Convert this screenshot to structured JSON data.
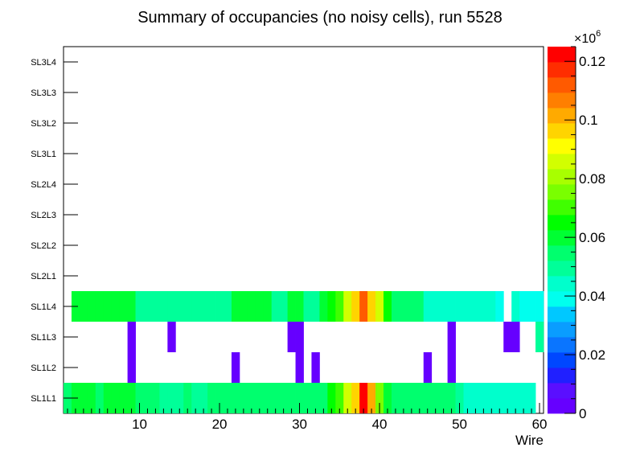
{
  "chart_data": {
    "type": "heatmap",
    "title": "Summary of occupancies (no noisy cells), run 5528",
    "xlabel": "Wire",
    "ylabel": "",
    "xlim": [
      0.5,
      60.5
    ],
    "x_ticks": [
      10,
      20,
      30,
      40,
      50,
      60
    ],
    "x_tick_labels": [
      "10",
      "20",
      "30",
      "40",
      "50",
      "60"
    ],
    "y_categories": [
      "SL1L1",
      "SL1L2",
      "SL1L3",
      "SL1L4",
      "SL2L1",
      "SL2L2",
      "SL2L3",
      "SL2L4",
      "SL3L1",
      "SL3L2",
      "SL3L3",
      "SL3L4"
    ],
    "z_range": [
      0,
      125000
    ],
    "z_exponent_label": "×10",
    "z_exponent_power": "6",
    "z_tick_values": [
      0,
      20000,
      40000,
      60000,
      80000,
      100000,
      120000
    ],
    "z_tick_labels": [
      "0",
      "0.02",
      "0.04",
      "0.06",
      "0.08",
      "0.1",
      "0.12"
    ],
    "palette": [
      "#6600ff",
      "#5a0fff",
      "#2020ff",
      "#0047ff",
      "#0a75ff",
      "#0a9dff",
      "#00c8ff",
      "#00ffee",
      "#00ffcc",
      "#00ff99",
      "#00ff6e",
      "#00ff33",
      "#00ff00",
      "#40ff00",
      "#7aff00",
      "#a8ff00",
      "#d2ff00",
      "#ffff00",
      "#ffd400",
      "#ffaa00",
      "#ff7f00",
      "#ff5a00",
      "#ff2d00",
      "#ff0000"
    ],
    "rows": {
      "SL1L1": [
        56000,
        60000,
        62000,
        58000,
        56000,
        60000,
        62000,
        58000,
        60000,
        56000,
        56000,
        56000,
        50000,
        50000,
        50000,
        54000,
        50000,
        50000,
        54000,
        56000,
        56000,
        56000,
        56000,
        56000,
        56000,
        56000,
        56000,
        56000,
        56000,
        56000,
        56000,
        56000,
        56000,
        65000,
        72000,
        85000,
        95000,
        120000,
        102000,
        75000,
        62000,
        54000,
        54000,
        54000,
        54000,
        54000,
        54000,
        54000,
        54000,
        50000,
        45000,
        45000,
        45000,
        45000,
        45000,
        45000,
        45000,
        45000,
        45000,
        null
      ],
      "SL1L2": [
        null,
        null,
        null,
        null,
        null,
        null,
        null,
        null,
        5000,
        null,
        null,
        null,
        null,
        null,
        null,
        null,
        null,
        null,
        null,
        null,
        null,
        5000,
        null,
        null,
        null,
        null,
        null,
        null,
        null,
        5000,
        null,
        5000,
        null,
        null,
        null,
        null,
        null,
        null,
        null,
        null,
        null,
        null,
        null,
        null,
        null,
        5000,
        null,
        null,
        5000,
        null,
        null,
        null,
        null,
        null,
        null,
        null,
        null,
        null,
        null,
        null
      ],
      "SL1L3": [
        null,
        null,
        null,
        null,
        null,
        null,
        null,
        null,
        5000,
        null,
        null,
        null,
        null,
        5000,
        null,
        null,
        null,
        null,
        null,
        null,
        null,
        null,
        null,
        null,
        null,
        null,
        null,
        null,
        5000,
        5000,
        null,
        null,
        null,
        null,
        null,
        null,
        null,
        null,
        null,
        null,
        null,
        null,
        null,
        null,
        null,
        null,
        null,
        null,
        5000,
        null,
        null,
        null,
        null,
        null,
        null,
        5000,
        5000,
        null,
        null,
        48000
      ],
      "SL1L4": [
        null,
        58000,
        58000,
        58000,
        58000,
        58000,
        58000,
        58000,
        58000,
        50000,
        50000,
        50000,
        50000,
        50000,
        50000,
        50000,
        50000,
        50000,
        50000,
        50000,
        50000,
        58000,
        58000,
        58000,
        58000,
        58000,
        50000,
        50000,
        62000,
        62000,
        50000,
        50000,
        62000,
        65000,
        72000,
        85000,
        95000,
        112000,
        98000,
        85000,
        65000,
        54000,
        54000,
        54000,
        54000,
        45000,
        45000,
        45000,
        45000,
        45000,
        45000,
        45000,
        45000,
        45000,
        38000,
        null,
        45000,
        38000,
        38000,
        38000
      ],
      "SL2L1": [],
      "SL2L2": [],
      "SL2L3": [],
      "SL2L4": [],
      "SL3L1": [],
      "SL3L2": [],
      "SL3L3": [],
      "SL3L4": []
    }
  }
}
